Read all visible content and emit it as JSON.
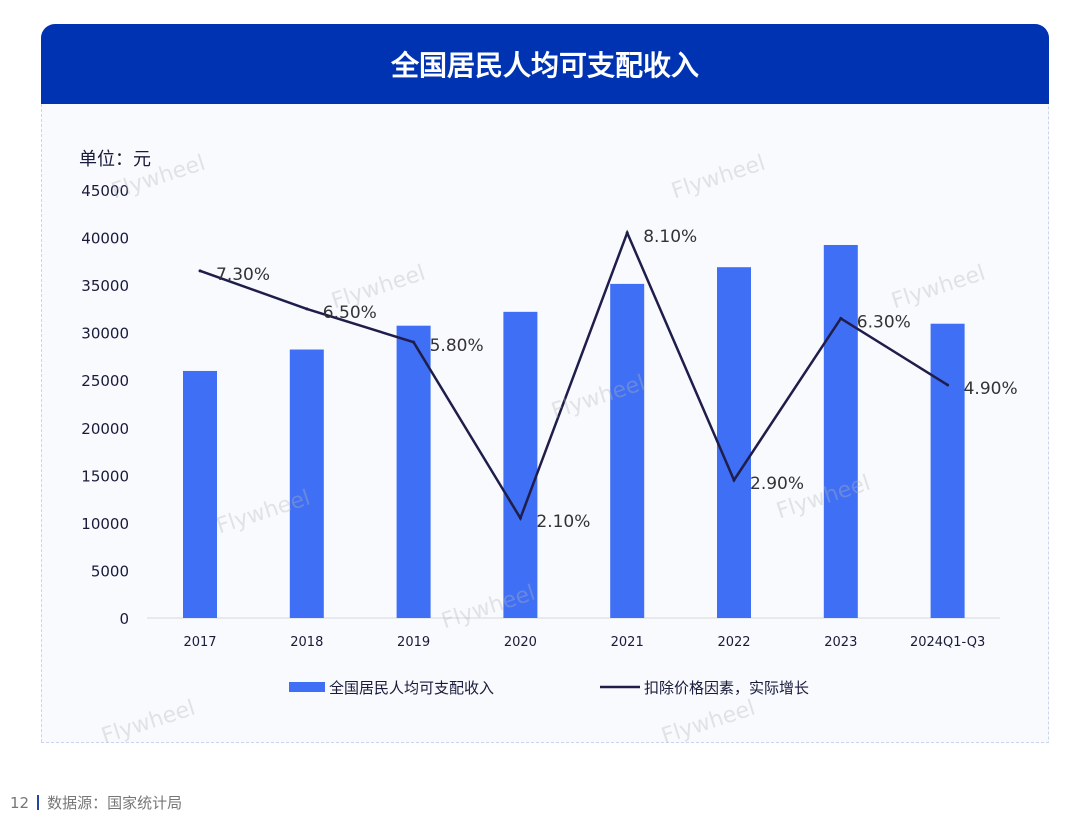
{
  "header": {
    "title": "全国居民人均可支配收入"
  },
  "footer": {
    "page": "12",
    "source": "数据源：国家统计局"
  },
  "watermark": "Flywheel",
  "chart_data": {
    "type": "bar+line",
    "unit_label": "单位：元",
    "categories": [
      "2017",
      "2018",
      "2019",
      "2020",
      "2021",
      "2022",
      "2023",
      "2024Q1-Q3"
    ],
    "series": [
      {
        "name": "全国居民人均可支配收入",
        "type": "bar",
        "color": "#3f6ff5",
        "axis": "left",
        "values": [
          25974,
          28228,
          30733,
          32189,
          35128,
          36883,
          39218,
          30941
        ]
      },
      {
        "name": "扣除价格因素，实际增长",
        "type": "line",
        "color": "#1f1d4a",
        "axis": "right-hidden",
        "values": [
          7.3,
          6.5,
          5.8,
          2.1,
          8.1,
          2.9,
          6.3,
          4.9
        ],
        "labels": [
          "7.30%",
          "6.50%",
          "5.80%",
          "2.10%",
          "8.10%",
          "2.90%",
          "6.30%",
          "4.90%"
        ]
      }
    ],
    "ylim": [
      0,
      45000
    ],
    "yticks": [
      0,
      5000,
      10000,
      15000,
      20000,
      25000,
      30000,
      35000,
      40000,
      45000
    ],
    "y2lim": [
      0,
      9
    ],
    "grid": false,
    "legend": "bottom"
  }
}
